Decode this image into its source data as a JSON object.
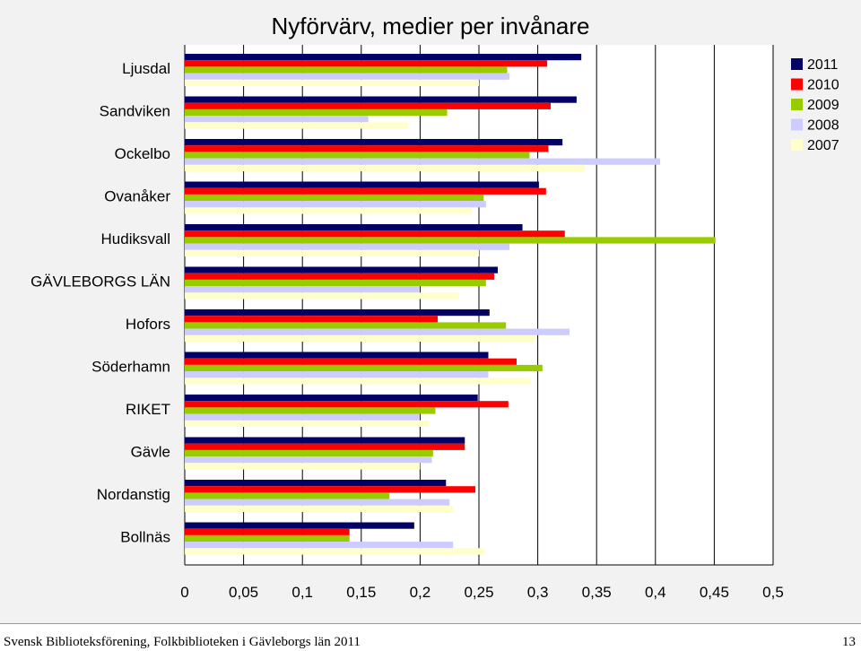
{
  "footer": {
    "left_text": "Svensk Biblioteksförening, Folkbiblioteken i Gävleborgs län 2011",
    "page_number": "13"
  },
  "chart_data": {
    "type": "bar",
    "orientation": "horizontal",
    "title": "Nyförvärv, medier per invånare",
    "xlabel": "",
    "ylabel": "",
    "xlim": [
      0,
      0.5
    ],
    "x_ticks": [
      "0",
      "0,05",
      "0,1",
      "0,15",
      "0,2",
      "0,25",
      "0,3",
      "0,35",
      "0,4",
      "0,45",
      "0,5"
    ],
    "grid": "vertical",
    "legend_position": "right",
    "categories": [
      "Ljusdal",
      "Sandviken",
      "Ockelbo",
      "Ovanåker",
      "Hudiksvall",
      "GÄVLEBORGS LÄN",
      "Hofors",
      "Söderhamn",
      "RIKET",
      "Gävle",
      "Nordanstig",
      "Bollnäs"
    ],
    "series": [
      {
        "name": "2011",
        "color": "#000066",
        "values": [
          0.337,
          0.333,
          0.321,
          0.301,
          0.287,
          0.266,
          0.259,
          0.258,
          0.249,
          0.238,
          0.222,
          0.195
        ]
      },
      {
        "name": "2010",
        "color": "#ff0000",
        "values": [
          0.308,
          0.311,
          0.309,
          0.307,
          0.323,
          0.263,
          0.215,
          0.282,
          0.275,
          0.238,
          0.247,
          0.14
        ]
      },
      {
        "name": "2009",
        "color": "#99cc00",
        "values": [
          0.274,
          0.223,
          0.293,
          0.254,
          0.451,
          0.256,
          0.273,
          0.304,
          0.213,
          0.211,
          0.174,
          0.14
        ]
      },
      {
        "name": "2008",
        "color": "#ccccff",
        "values": [
          0.276,
          0.156,
          0.404,
          0.256,
          0.276,
          0.199,
          0.327,
          0.258,
          0.199,
          0.21,
          0.225,
          0.228
        ]
      },
      {
        "name": "2007",
        "color": "#ffffcc",
        "values": [
          0.25,
          0.19,
          0.34,
          0.244,
          0.25,
          0.233,
          0.298,
          0.294,
          0.208,
          0.2,
          0.228,
          0.255
        ]
      }
    ]
  }
}
